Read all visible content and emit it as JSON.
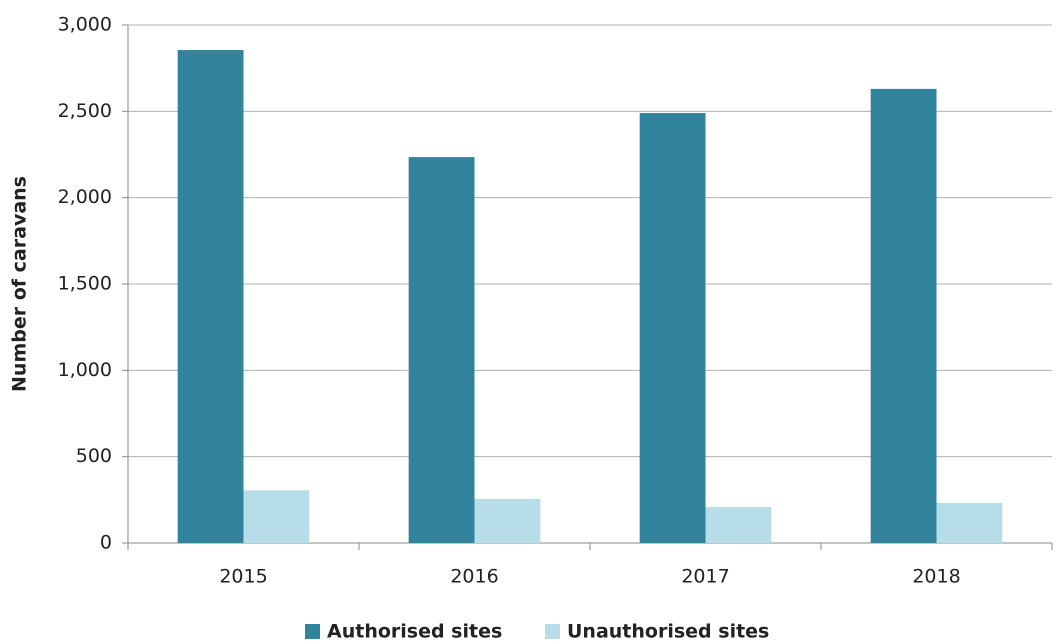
{
  "chart_data": {
    "type": "bar",
    "y_label": "Number of caravans",
    "categories": [
      "2015",
      "2016",
      "2017",
      "2018"
    ],
    "series": [
      {
        "name": "Authorised sites",
        "color": "#31849b",
        "values": [
          2855,
          2235,
          2490,
          2630
        ]
      },
      {
        "name": "Unauthorised sites",
        "color": "#b7dde8",
        "values": [
          305,
          255,
          208,
          232
        ]
      }
    ],
    "ylim": [
      0,
      3000
    ],
    "yticks": [
      0,
      500,
      {
        "value": 1000,
        "label": "1,000"
      },
      {
        "value": 1500,
        "label": "1,500"
      },
      {
        "value": 2000,
        "label": "2,000"
      },
      {
        "value": 2500,
        "label": "2,500"
      },
      {
        "value": 3000,
        "label": "3,000"
      }
    ],
    "grid": true,
    "legend": "bottom"
  }
}
